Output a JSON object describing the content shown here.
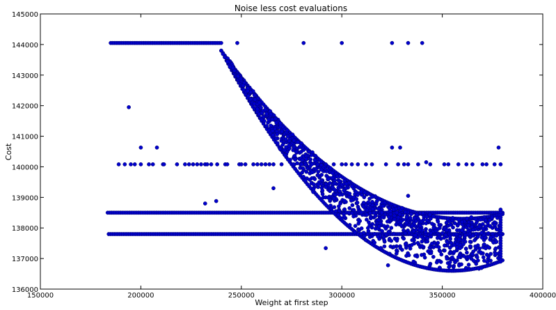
{
  "chart_data": {
    "type": "scatter",
    "title": "Noise less cost evaluations",
    "xlabel": "Weight at first step",
    "ylabel": "Cost",
    "xlim": [
      150000,
      400000
    ],
    "ylim": [
      136000,
      145000
    ],
    "xticks": [
      150000,
      200000,
      250000,
      300000,
      350000,
      400000
    ],
    "yticks": [
      136000,
      137000,
      138000,
      139000,
      140000,
      141000,
      142000,
      143000,
      144000,
      145000
    ],
    "grid": false,
    "marker_color": "#0000cc",
    "marker_edge_color": "#000066",
    "bands": [
      {
        "x_range": [
          183500,
          380000
        ],
        "y": 138500
      },
      {
        "x_range": [
          184000,
          380000
        ],
        "y": 137800
      },
      {
        "x_range": [
          185000,
          240000
        ],
        "y": 144050
      }
    ],
    "curves": [
      {
        "x_range": [
          240000,
          380000
        ],
        "vertex_x": 360000,
        "vertex_y": 138300,
        "start_y": 143800
      },
      {
        "x_range": [
          240000,
          380000
        ],
        "vertex_x": 355000,
        "vertex_y": 136600,
        "start_y": 143800
      }
    ],
    "outliers": [
      {
        "x": 194000,
        "y": 141950
      },
      {
        "x": 200000,
        "y": 140630
      },
      {
        "x": 208000,
        "y": 140630
      },
      {
        "x": 232000,
        "y": 138800
      },
      {
        "x": 237500,
        "y": 138880
      },
      {
        "x": 248000,
        "y": 144050
      },
      {
        "x": 281000,
        "y": 144050
      },
      {
        "x": 300000,
        "y": 144050
      },
      {
        "x": 325000,
        "y": 144050
      },
      {
        "x": 333000,
        "y": 144050
      },
      {
        "x": 340000,
        "y": 144050
      },
      {
        "x": 325000,
        "y": 140630
      },
      {
        "x": 329000,
        "y": 140630
      },
      {
        "x": 378000,
        "y": 140630
      },
      {
        "x": 266000,
        "y": 139300
      },
      {
        "x": 292000,
        "y": 137340
      },
      {
        "x": 323000,
        "y": 136780
      },
      {
        "x": 333000,
        "y": 139050
      },
      {
        "x": 342000,
        "y": 140150
      }
    ],
    "row_140000": {
      "y": 140080,
      "x": [
        189000,
        192000,
        195000,
        197000,
        200000,
        204000,
        206000,
        211000,
        211500,
        218000,
        222000,
        224000,
        226000,
        228000,
        230000,
        232000,
        233000,
        235000,
        238000,
        242000,
        243000,
        249000,
        250000,
        252000,
        256000,
        258000,
        260000,
        262000,
        264000,
        266000,
        270000,
        276000,
        280000,
        285000,
        288000,
        292000,
        296000,
        300000,
        302000,
        305000,
        308000,
        312000,
        315000,
        322000,
        328000,
        331000,
        333000,
        338000,
        344000,
        351000,
        353000,
        358000,
        362000,
        365000,
        370000,
        372000,
        376000,
        379000
      ]
    },
    "column_x": {
      "x": 379000,
      "y_range": [
        136900,
        138600
      ]
    }
  }
}
